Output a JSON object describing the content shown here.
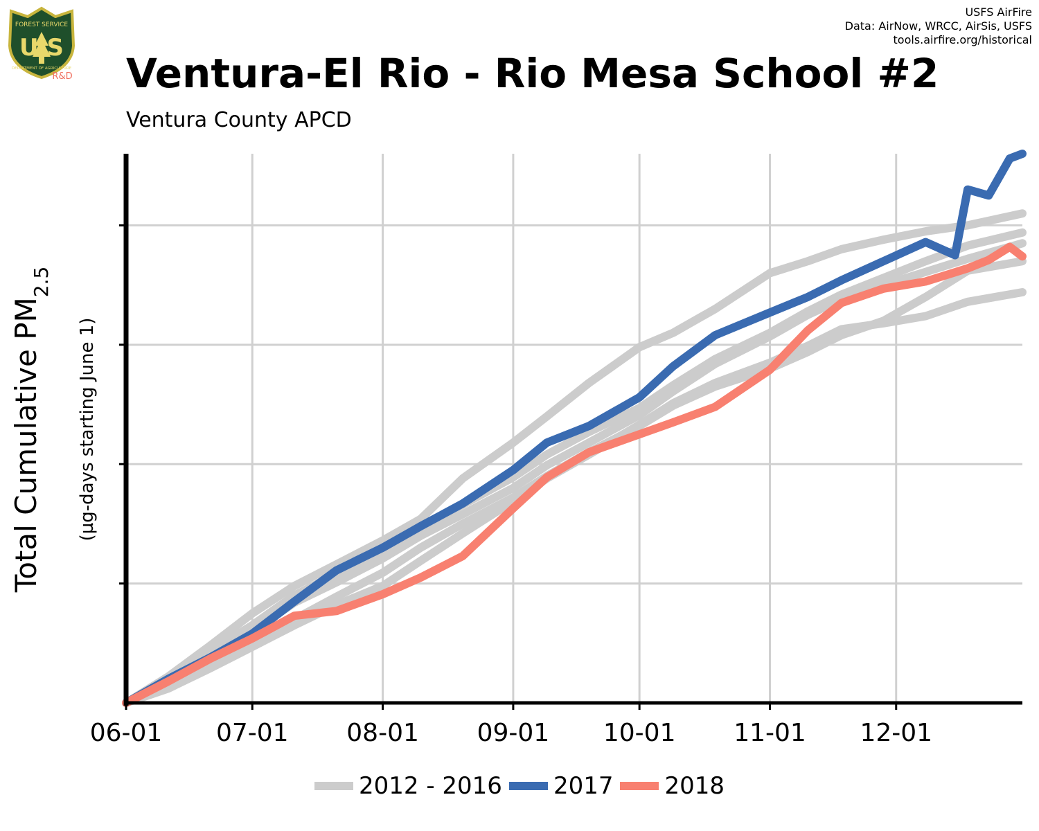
{
  "header": {
    "title": "Ventura-El Rio - Rio Mesa School #2",
    "subtitle": "Ventura County  APCD",
    "credits": [
      "USFS AirFire",
      "Data: AirNow, WRCC, AirSis, USFS",
      "tools.airfire.org/historical"
    ]
  },
  "logo": {
    "top_text": "FOREST SERVICE",
    "letters": "U S",
    "bottom_text": "DEPARTMENT OF AGRICULTURE",
    "rd_label": "R&D"
  },
  "chart_data": {
    "type": "line",
    "ylabel_main": "Total Cumulative PM",
    "ylabel_subscript": "2.5",
    "ylabel_secondary": "(µg-days starting June 1)",
    "xlabel": "",
    "x_ticks": [
      "06-01",
      "07-01",
      "08-01",
      "09-01",
      "10-01",
      "11-01",
      "12-01"
    ],
    "x_tick_days": [
      0,
      30,
      61,
      92,
      122,
      153,
      183
    ],
    "xlim": [
      0,
      213
    ],
    "ylim": [
      0,
      4600
    ],
    "y_gridlines": [
      1000,
      2000,
      3000,
      4000
    ],
    "y_tick_labels_shown": false,
    "grid": true,
    "legend_position": "bottom",
    "colors": {
      "historic": "#cccccc",
      "y2017": "#3a6bb1",
      "y2018": "#f88070"
    },
    "series": [
      {
        "name": "2017",
        "color": "#3a6bb1",
        "x": [
          0,
          10,
          20,
          30,
          40,
          50,
          61,
          70,
          80,
          92,
          100,
          110,
          122,
          130,
          140,
          153,
          162,
          170,
          180,
          190,
          197,
          200,
          205,
          210,
          213
        ],
        "y": [
          0,
          200,
          380,
          580,
          850,
          1110,
          1300,
          1480,
          1670,
          1950,
          2180,
          2320,
          2560,
          2820,
          3080,
          3270,
          3400,
          3540,
          3700,
          3860,
          3750,
          4300,
          4250,
          4560,
          4600
        ]
      },
      {
        "name": "2018",
        "color": "#f88070",
        "x": [
          0,
          10,
          20,
          30,
          40,
          50,
          61,
          70,
          80,
          92,
          100,
          110,
          122,
          130,
          140,
          153,
          162,
          170,
          180,
          190,
          200,
          205,
          210,
          213
        ],
        "y": [
          0,
          180,
          370,
          540,
          730,
          770,
          910,
          1050,
          1230,
          1630,
          1890,
          2100,
          2250,
          2350,
          2480,
          2790,
          3120,
          3350,
          3470,
          3530,
          3640,
          3710,
          3820,
          3740
        ]
      },
      {
        "name": "",
        "color": "#cccccc",
        "x": [
          0,
          10,
          20,
          30,
          40,
          50,
          61,
          70,
          80,
          92,
          100,
          110,
          122,
          130,
          140,
          153,
          162,
          170,
          180,
          190,
          200,
          213
        ],
        "y": [
          0,
          220,
          480,
          750,
          980,
          1160,
          1360,
          1540,
          1880,
          2180,
          2400,
          2680,
          2980,
          3100,
          3300,
          3600,
          3700,
          3800,
          3880,
          3950,
          4000,
          4100
        ]
      },
      {
        "name": "",
        "color": "#cccccc",
        "x": [
          0,
          10,
          20,
          30,
          40,
          50,
          61,
          70,
          80,
          92,
          100,
          110,
          122,
          130,
          140,
          153,
          162,
          170,
          180,
          190,
          200,
          213
        ],
        "y": [
          0,
          200,
          430,
          650,
          900,
          1080,
          1280,
          1470,
          1660,
          1890,
          2080,
          2270,
          2470,
          2660,
          2880,
          3100,
          3280,
          3420,
          3560,
          3700,
          3830,
          3940
        ]
      },
      {
        "name": "",
        "color": "#cccccc",
        "x": [
          0,
          10,
          20,
          30,
          40,
          50,
          61,
          70,
          80,
          92,
          100,
          110,
          122,
          130,
          140,
          153,
          162,
          170,
          180,
          190,
          200,
          213
        ],
        "y": [
          0,
          180,
          390,
          600,
          840,
          1010,
          1210,
          1400,
          1580,
          1800,
          1990,
          2180,
          2410,
          2610,
          2840,
          3070,
          3250,
          3380,
          3500,
          3610,
          3720,
          3850
        ]
      },
      {
        "name": "",
        "color": "#cccccc",
        "x": [
          0,
          10,
          20,
          30,
          40,
          50,
          61,
          70,
          80,
          92,
          100,
          110,
          122,
          130,
          140,
          153,
          162,
          170,
          180,
          190,
          200,
          213
        ],
        "y": [
          0,
          140,
          310,
          490,
          700,
          890,
          1090,
          1300,
          1500,
          1720,
          1900,
          2100,
          2320,
          2490,
          2650,
          2800,
          2940,
          3080,
          3200,
          3400,
          3620,
          3700
        ]
      },
      {
        "name": "",
        "color": "#cccccc",
        "x": [
          0,
          10,
          20,
          30,
          40,
          50,
          61,
          70,
          80,
          92,
          100,
          110,
          122,
          130,
          140,
          153,
          162,
          170,
          180,
          190,
          200,
          213
        ],
        "y": [
          0,
          120,
          290,
          470,
          650,
          820,
          980,
          1190,
          1420,
          1690,
          1880,
          2080,
          2330,
          2510,
          2680,
          2850,
          2990,
          3130,
          3180,
          3240,
          3360,
          3440
        ]
      }
    ]
  },
  "legend": {
    "items": [
      {
        "label": "2012 - 2016",
        "color": "#cccccc"
      },
      {
        "label": "2017",
        "color": "#3a6bb1"
      },
      {
        "label": "2018",
        "color": "#f88070"
      }
    ]
  }
}
